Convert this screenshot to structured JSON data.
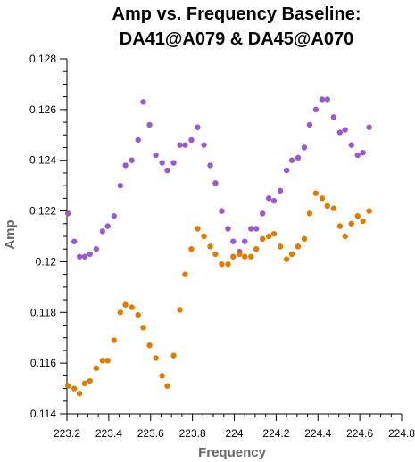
{
  "chart_data": {
    "type": "scatter",
    "title_lines": [
      "Amp vs. Frequency Baseline:",
      "DA41@A079 & DA45@A070"
    ],
    "xlabel": "Frequency",
    "ylabel": "Amp",
    "xlim": [
      223.2,
      224.8
    ],
    "ylim": [
      0.114,
      0.128
    ],
    "x_ticks": [
      223.2,
      223.4,
      223.6,
      223.8,
      224.0,
      224.2,
      224.4,
      224.6,
      224.8
    ],
    "x_tick_labels": [
      "223.2",
      "223.4",
      "223.6",
      "223.8",
      "224",
      "224.2",
      "224.4",
      "224.6",
      "224.8"
    ],
    "y_ticks": [
      0.114,
      0.116,
      0.118,
      0.12,
      0.122,
      0.124,
      0.126,
      0.128
    ],
    "y_tick_labels": [
      "0.114",
      "0.116",
      "0.118",
      "0.12",
      "0.122",
      "0.124",
      "0.126",
      "0.128"
    ],
    "grid": false,
    "series": [
      {
        "color": "#9b59d0",
        "points": [
          [
            223.205,
            0.1219
          ],
          [
            223.235,
            0.1208
          ],
          [
            223.26,
            0.1202
          ],
          [
            223.285,
            0.1202
          ],
          [
            223.31,
            0.1203
          ],
          [
            223.34,
            0.1205
          ],
          [
            223.37,
            0.1212
          ],
          [
            223.395,
            0.1214
          ],
          [
            223.425,
            0.1218
          ],
          [
            223.455,
            0.123
          ],
          [
            223.48,
            0.1238
          ],
          [
            223.51,
            0.124
          ],
          [
            223.54,
            0.1248
          ],
          [
            223.565,
            0.1263
          ],
          [
            223.595,
            0.1254
          ],
          [
            223.625,
            0.1242
          ],
          [
            223.655,
            0.1239
          ],
          [
            223.68,
            0.1236
          ],
          [
            223.71,
            0.1239
          ],
          [
            223.74,
            0.1246
          ],
          [
            223.765,
            0.1246
          ],
          [
            223.795,
            0.1248
          ],
          [
            223.825,
            0.1253
          ],
          [
            223.855,
            0.1246
          ],
          [
            223.885,
            0.1238
          ],
          [
            223.91,
            0.1231
          ],
          [
            223.94,
            0.122
          ],
          [
            223.97,
            0.1213
          ],
          [
            223.995,
            0.1208
          ],
          [
            224.025,
            0.1204
          ],
          [
            224.05,
            0.1208
          ],
          [
            224.08,
            0.1213
          ],
          [
            224.105,
            0.1213
          ],
          [
            224.135,
            0.1219
          ],
          [
            224.165,
            0.1225
          ],
          [
            224.19,
            0.1224
          ],
          [
            224.22,
            0.1228
          ],
          [
            224.25,
            0.1236
          ],
          [
            224.275,
            0.124
          ],
          [
            224.305,
            0.1241
          ],
          [
            224.335,
            0.1245
          ],
          [
            224.36,
            0.1254
          ],
          [
            224.39,
            0.126
          ],
          [
            224.42,
            0.1264
          ],
          [
            224.445,
            0.1264
          ],
          [
            224.475,
            0.1257
          ],
          [
            224.505,
            0.1251
          ],
          [
            224.53,
            0.1252
          ],
          [
            224.56,
            0.1246
          ],
          [
            224.59,
            0.1242
          ],
          [
            224.615,
            0.1243
          ],
          [
            224.645,
            0.1253
          ]
        ]
      },
      {
        "color": "#e07b00",
        "points": [
          [
            223.205,
            0.1151
          ],
          [
            223.235,
            0.115
          ],
          [
            223.26,
            0.1148
          ],
          [
            223.285,
            0.1152
          ],
          [
            223.31,
            0.1153
          ],
          [
            223.34,
            0.1158
          ],
          [
            223.37,
            0.1161
          ],
          [
            223.395,
            0.1161
          ],
          [
            223.425,
            0.1169
          ],
          [
            223.455,
            0.118
          ],
          [
            223.48,
            0.1183
          ],
          [
            223.51,
            0.1182
          ],
          [
            223.54,
            0.1179
          ],
          [
            223.565,
            0.1174
          ],
          [
            223.595,
            0.1167
          ],
          [
            223.625,
            0.1162
          ],
          [
            223.655,
            0.1155
          ],
          [
            223.68,
            0.1151
          ],
          [
            223.71,
            0.1163
          ],
          [
            223.74,
            0.1181
          ],
          [
            223.765,
            0.1195
          ],
          [
            223.795,
            0.1205
          ],
          [
            223.825,
            0.1213
          ],
          [
            223.855,
            0.121
          ],
          [
            223.885,
            0.1206
          ],
          [
            223.91,
            0.1203
          ],
          [
            223.94,
            0.1199
          ],
          [
            223.97,
            0.1199
          ],
          [
            223.995,
            0.1202
          ],
          [
            224.025,
            0.1203
          ],
          [
            224.05,
            0.1202
          ],
          [
            224.08,
            0.1202
          ],
          [
            224.105,
            0.1205
          ],
          [
            224.135,
            0.1209
          ],
          [
            224.165,
            0.121
          ],
          [
            224.19,
            0.1211
          ],
          [
            224.22,
            0.1206
          ],
          [
            224.25,
            0.1201
          ],
          [
            224.275,
            0.1203
          ],
          [
            224.305,
            0.1206
          ],
          [
            224.335,
            0.1209
          ],
          [
            224.36,
            0.1219
          ],
          [
            224.39,
            0.1227
          ],
          [
            224.42,
            0.1225
          ],
          [
            224.445,
            0.1222
          ],
          [
            224.475,
            0.1221
          ],
          [
            224.505,
            0.1214
          ],
          [
            224.53,
            0.121
          ],
          [
            224.56,
            0.1215
          ],
          [
            224.59,
            0.1218
          ],
          [
            224.615,
            0.1216
          ],
          [
            224.645,
            0.122
          ]
        ]
      }
    ]
  }
}
